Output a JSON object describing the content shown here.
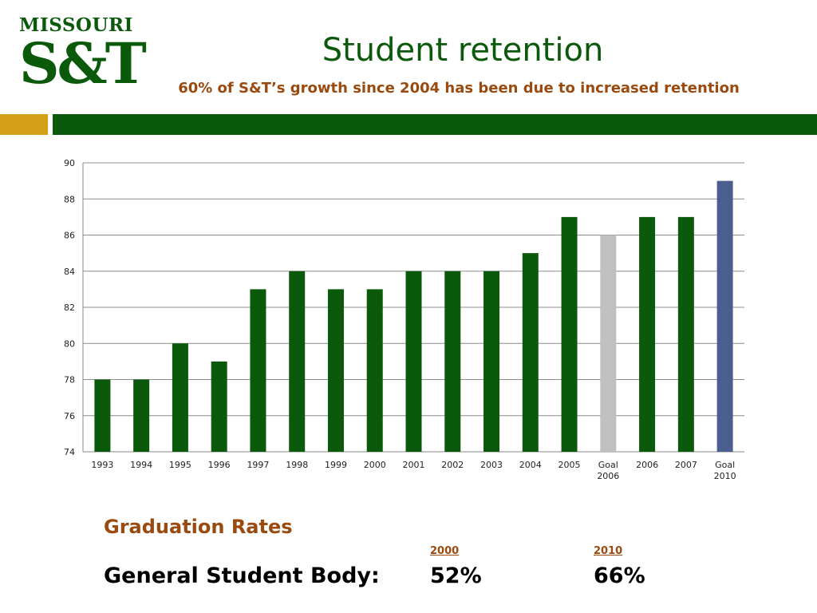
{
  "logo": {
    "top_text": "MISSOURI",
    "main_text": "S&T",
    "color": "#0b5a0b"
  },
  "header": {
    "title": "Student retention",
    "subtitle": "60% of S&T’s growth since 2004 has been due to increased retention"
  },
  "colors": {
    "accent_gold": "#d4a017",
    "brand_green": "#0b5a0b",
    "subtitle": "#9a4a0f",
    "goal_2006": "#c0c0c0",
    "goal_2010": "#4a5e8f"
  },
  "chart_data": {
    "type": "bar",
    "categories": [
      "1993",
      "1994",
      "1995",
      "1996",
      "1997",
      "1998",
      "1999",
      "2000",
      "2001",
      "2002",
      "2003",
      "2004",
      "2005",
      "Goal 2006",
      "2006",
      "2007",
      "Goal 2010"
    ],
    "values": [
      78,
      78,
      80,
      79,
      83,
      84,
      83,
      83,
      84,
      84,
      84,
      85,
      87,
      86,
      87,
      87,
      89
    ],
    "bar_colors": [
      "#0b5a0b",
      "#0b5a0b",
      "#0b5a0b",
      "#0b5a0b",
      "#0b5a0b",
      "#0b5a0b",
      "#0b5a0b",
      "#0b5a0b",
      "#0b5a0b",
      "#0b5a0b",
      "#0b5a0b",
      "#0b5a0b",
      "#0b5a0b",
      "#c0c0c0",
      "#0b5a0b",
      "#0b5a0b",
      "#4a5e8f"
    ],
    "ylim": [
      74,
      90
    ],
    "yticks": [
      74,
      76,
      78,
      80,
      82,
      84,
      86,
      88,
      90
    ],
    "grid": true,
    "title": "",
    "xlabel": "",
    "ylabel": ""
  },
  "graduation": {
    "title": "Graduation Rates",
    "col1_year": "2000",
    "col2_year": "2010",
    "row_label": "General Student Body:",
    "col1_value": "52%",
    "col2_value": "66%"
  }
}
